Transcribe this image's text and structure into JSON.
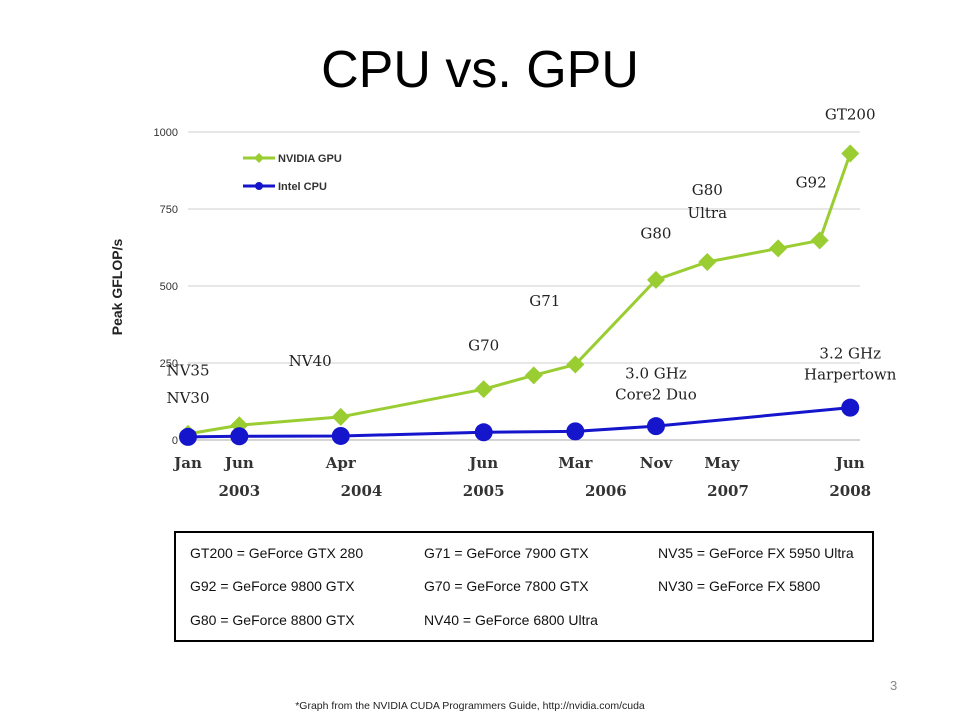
{
  "slide": {
    "title": "CPU vs. GPU",
    "slide_number": "3",
    "footnote": "*Graph from the NVIDIA CUDA Programmers Guide, http://nvidia.com/cuda"
  },
  "chart_data": {
    "type": "line",
    "ylabel": "Peak GFLOP/s",
    "ylim": [
      0,
      1000
    ],
    "yticks": [
      "0",
      "250",
      "500",
      "750",
      "1000"
    ],
    "xlim": [
      2003.0,
      2008.5
    ],
    "month_labels": [
      "Jan",
      "Jun",
      "Apr",
      "Jun",
      "Mar",
      "Nov",
      "May",
      "Jun"
    ],
    "month_positions": [
      2003.0,
      2003.42,
      2004.25,
      2005.42,
      2006.17,
      2006.83,
      2007.37,
      2008.42
    ],
    "year_labels": [
      "2003",
      "2004",
      "2005",
      "2006",
      "2007",
      "2008"
    ],
    "year_positions": [
      2003.42,
      2004.42,
      2005.42,
      2006.42,
      2007.42,
      2008.42
    ],
    "grid": true,
    "legend": "top-left",
    "series": [
      {
        "name": "NVIDIA GPU",
        "color": "#9acd32",
        "marker": "diamond",
        "x": [
          2003.0,
          2003.42,
          2004.25,
          2005.42,
          2005.83,
          2006.17,
          2006.83,
          2007.25,
          2007.83,
          2008.17,
          2008.42
        ],
        "y": [
          20,
          48,
          75,
          165,
          210,
          245,
          520,
          578,
          622,
          648,
          930
        ]
      },
      {
        "name": "Intel CPU",
        "color": "#1515cc",
        "marker": "circle",
        "x": [
          2003.0,
          2003.42,
          2004.25,
          2005.42,
          2006.17,
          2006.83,
          2008.42
        ],
        "y": [
          10,
          12,
          13,
          25,
          28,
          45,
          105
        ]
      }
    ],
    "annotations": [
      {
        "text": "NV30",
        "x": 2003.0,
        "y": 120
      },
      {
        "text": "NV35",
        "x": 2003.0,
        "y": 210
      },
      {
        "text": "NV40",
        "x": 2004.0,
        "y": 240
      },
      {
        "text": "G70",
        "x": 2005.42,
        "y": 290
      },
      {
        "text": "G71",
        "x": 2005.92,
        "y": 435
      },
      {
        "text": "G80",
        "x": 2006.83,
        "y": 655
      },
      {
        "text": "G80",
        "x": 2007.25,
        "y": 795
      },
      {
        "text": "Ultra",
        "x": 2007.25,
        "y": 720
      },
      {
        "text": "G92",
        "x": 2008.1,
        "y": 820
      },
      {
        "text": "GT200",
        "x": 2008.42,
        "y": 1040
      },
      {
        "text": "3.0 GHz",
        "x": 2006.83,
        "y": 200
      },
      {
        "text": "Core2 Duo",
        "x": 2006.83,
        "y": 132
      },
      {
        "text": "3.2 GHz",
        "x": 2008.42,
        "y": 265
      },
      {
        "text": "Harpertown",
        "x": 2008.42,
        "y": 197
      }
    ]
  },
  "legend_table": {
    "col1": [
      "GT200 = GeForce GTX 280",
      "G92 = GeForce 9800 GTX",
      "G80 = GeForce 8800 GTX"
    ],
    "col2": [
      "G71 = GeForce 7900 GTX",
      "G70 = GeForce 7800 GTX",
      "NV40 = GeForce 6800 Ultra"
    ],
    "col3": [
      "NV35 = GeForce FX 5950 Ultra",
      "NV30 = GeForce FX 5800"
    ]
  }
}
